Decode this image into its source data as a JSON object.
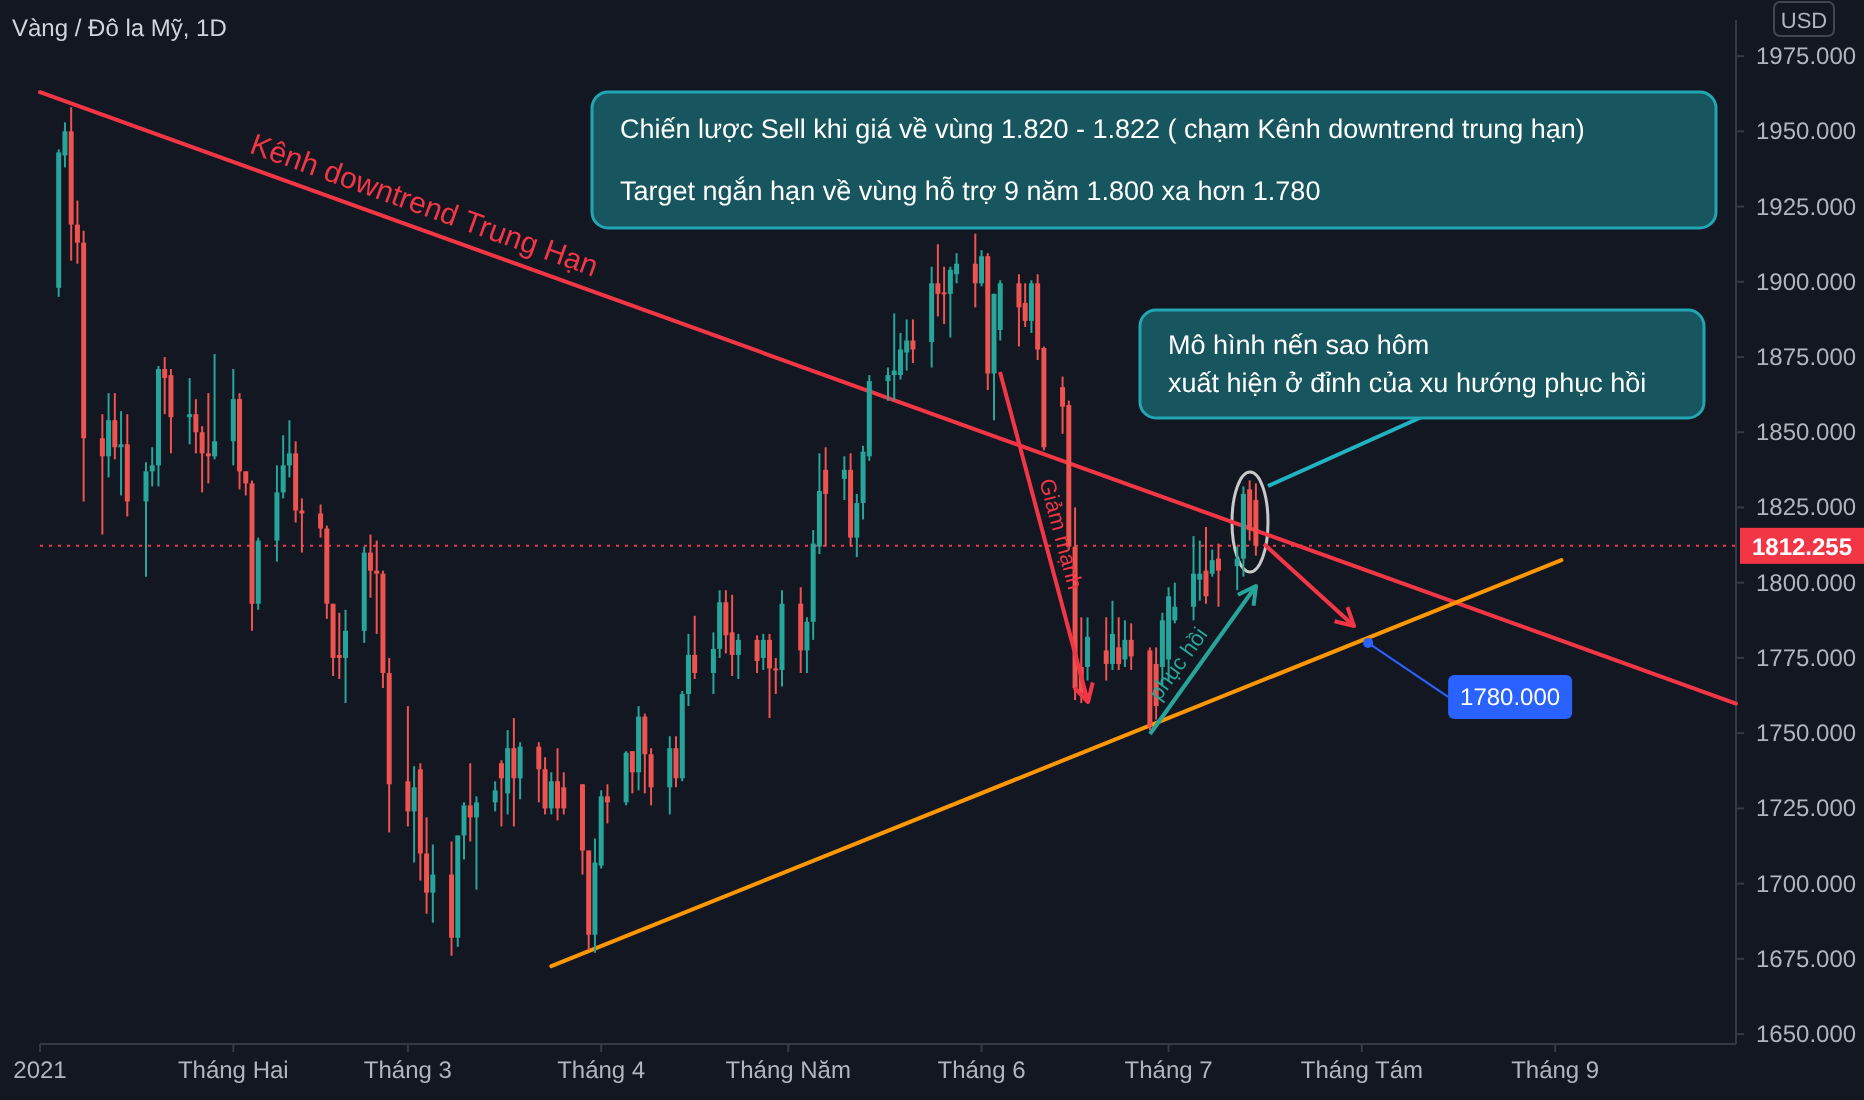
{
  "chart_data": {
    "type": "candlestick",
    "title": "Vàng / Đô la Mỹ, 1D",
    "ylabel": "USD",
    "x": [
      "2021-01-04",
      "2021-01-05",
      "2021-01-06",
      "2021-01-07",
      "2021-01-08",
      "2021-01-11",
      "2021-01-12",
      "2021-01-13",
      "2021-01-14",
      "2021-01-15",
      "2021-01-18",
      "2021-01-19",
      "2021-01-20",
      "2021-01-21",
      "2021-01-22",
      "2021-01-25",
      "2021-01-26",
      "2021-01-27",
      "2021-01-28",
      "2021-01-29",
      "2021-02-01",
      "2021-02-02",
      "2021-02-03",
      "2021-02-04",
      "2021-02-05",
      "2021-02-08",
      "2021-02-09",
      "2021-02-10",
      "2021-02-11",
      "2021-02-12",
      "2021-02-15",
      "2021-02-16",
      "2021-02-17",
      "2021-02-18",
      "2021-02-19",
      "2021-02-22",
      "2021-02-23",
      "2021-02-24",
      "2021-02-25",
      "2021-02-26",
      "2021-03-01",
      "2021-03-02",
      "2021-03-03",
      "2021-03-04",
      "2021-03-05",
      "2021-03-08",
      "2021-03-09",
      "2021-03-10",
      "2021-03-11",
      "2021-03-12",
      "2021-03-15",
      "2021-03-16",
      "2021-03-17",
      "2021-03-18",
      "2021-03-19",
      "2021-03-22",
      "2021-03-23",
      "2021-03-24",
      "2021-03-25",
      "2021-03-26",
      "2021-03-29",
      "2021-03-30",
      "2021-03-31",
      "2021-04-01",
      "2021-04-02",
      "2021-04-05",
      "2021-04-06",
      "2021-04-07",
      "2021-04-08",
      "2021-04-09",
      "2021-04-12",
      "2021-04-13",
      "2021-04-14",
      "2021-04-15",
      "2021-04-16",
      "2021-04-19",
      "2021-04-20",
      "2021-04-21",
      "2021-04-22",
      "2021-04-23",
      "2021-04-26",
      "2021-04-27",
      "2021-04-28",
      "2021-04-29",
      "2021-04-30",
      "2021-05-03",
      "2021-05-04",
      "2021-05-05",
      "2021-05-06",
      "2021-05-07",
      "2021-05-10",
      "2021-05-11",
      "2021-05-12",
      "2021-05-13",
      "2021-05-14",
      "2021-05-17",
      "2021-05-18",
      "2021-05-19",
      "2021-05-20",
      "2021-05-21",
      "2021-05-24",
      "2021-05-25",
      "2021-05-26",
      "2021-05-27",
      "2021-05-28",
      "2021-05-31",
      "2021-06-01",
      "2021-06-02",
      "2021-06-03",
      "2021-06-04",
      "2021-06-07",
      "2021-06-08",
      "2021-06-09",
      "2021-06-10",
      "2021-06-11",
      "2021-06-14",
      "2021-06-15",
      "2021-06-16",
      "2021-06-17",
      "2021-06-18",
      "2021-06-21",
      "2021-06-22",
      "2021-06-23",
      "2021-06-24",
      "2021-06-25",
      "2021-06-28",
      "2021-06-29",
      "2021-06-30",
      "2021-07-01",
      "2021-07-02",
      "2021-07-05",
      "2021-07-06",
      "2021-07-07",
      "2021-07-08",
      "2021-07-09",
      "2021-07-12",
      "2021-07-13",
      "2021-07-14",
      "2021-07-15"
    ],
    "ohlc": [
      [
        1898,
        1944,
        1895,
        1943
      ],
      [
        1942,
        1953,
        1938,
        1950
      ],
      [
        1950,
        1958,
        1907,
        1919
      ],
      [
        1919,
        1927,
        1906,
        1913
      ],
      [
        1913,
        1917,
        1827,
        1848
      ],
      [
        1848,
        1856,
        1816,
        1842
      ],
      [
        1842,
        1863,
        1835,
        1854
      ],
      [
        1854,
        1863,
        1841,
        1845
      ],
      [
        1845,
        1857,
        1829,
        1846
      ],
      [
        1846,
        1856,
        1822,
        1827
      ],
      [
        1827,
        1840,
        1802,
        1837
      ],
      [
        1837,
        1845,
        1832,
        1839
      ],
      [
        1839,
        1872,
        1832,
        1871
      ],
      [
        1871,
        1875,
        1856,
        1868
      ],
      [
        1869,
        1871,
        1843,
        1855
      ],
      [
        1855,
        1868,
        1846,
        1856
      ],
      [
        1856,
        1861,
        1843,
        1850
      ],
      [
        1850,
        1852,
        1830,
        1843
      ],
      [
        1843,
        1863,
        1833,
        1842
      ],
      [
        1842,
        1876,
        1841,
        1847
      ],
      [
        1847,
        1871,
        1839,
        1861
      ],
      [
        1861,
        1863,
        1831,
        1837
      ],
      [
        1837,
        1837,
        1829,
        1833
      ],
      [
        1833,
        1834,
        1784,
        1793
      ],
      [
        1793,
        1815,
        1791,
        1814
      ],
      [
        1814,
        1839,
        1807,
        1830
      ],
      [
        1830,
        1849,
        1828,
        1839
      ],
      [
        1839,
        1854,
        1835,
        1843
      ],
      [
        1843,
        1847,
        1820,
        1824
      ],
      [
        1824,
        1828,
        1810,
        1823
      ],
      [
        1823,
        1826,
        1815,
        1818
      ],
      [
        1818,
        1819,
        1788,
        1793
      ],
      [
        1793,
        1793,
        1769,
        1775
      ],
      [
        1776,
        1790,
        1768,
        1775
      ],
      [
        1775,
        1791,
        1760,
        1784
      ],
      [
        1784,
        1812,
        1780,
        1810
      ],
      [
        1810,
        1816,
        1795,
        1804
      ],
      [
        1804,
        1814,
        1783,
        1803
      ],
      [
        1803,
        1804,
        1765,
        1770
      ],
      [
        1770,
        1775,
        1717,
        1733
      ],
      [
        1734,
        1759,
        1719,
        1724
      ],
      [
        1724,
        1739,
        1707,
        1732
      ],
      [
        1738,
        1740,
        1701,
        1710
      ],
      [
        1710,
        1722,
        1690,
        1697
      ],
      [
        1697,
        1713,
        1687,
        1703
      ],
      [
        1703,
        1714,
        1676,
        1682
      ],
      [
        1682,
        1716,
        1679,
        1716
      ],
      [
        1716,
        1727,
        1708,
        1726
      ],
      [
        1726,
        1740,
        1714,
        1722
      ],
      [
        1722,
        1729,
        1698,
        1727
      ],
      [
        1727,
        1734,
        1724,
        1731
      ],
      [
        1740,
        1741,
        1719,
        1735
      ],
      [
        1730,
        1751,
        1723,
        1745
      ],
      [
        1745,
        1755,
        1719,
        1735
      ],
      [
        1735,
        1747,
        1728,
        1745.5
      ],
      [
        1745.5,
        1747,
        1727,
        1738
      ],
      [
        1738,
        1742,
        1723,
        1725
      ],
      [
        1725,
        1737,
        1723,
        1734
      ],
      [
        1734,
        1745,
        1721,
        1725
      ],
      [
        1732,
        1737,
        1723,
        1725
      ],
      [
        1733,
        1733,
        1703,
        1711
      ],
      [
        1711,
        1711,
        1678,
        1683
      ],
      [
        1683,
        1715,
        1677,
        1707
      ],
      [
        1706,
        1731,
        1705,
        1729
      ],
      [
        1729,
        1733,
        1720,
        1727
      ],
      [
        1727,
        1744,
        1726,
        1743.5
      ],
      [
        1744,
        1744,
        1730,
        1737
      ],
      [
        1737,
        1759,
        1731,
        1755.5
      ],
      [
        1755.5,
        1756.5,
        1730,
        1743
      ],
      [
        1743,
        1745,
        1726,
        1732
      ],
      [
        1732,
        1749,
        1723,
        1745
      ],
      [
        1745,
        1749,
        1732,
        1735
      ],
      [
        1735,
        1764,
        1734,
        1763
      ],
      [
        1763,
        1783,
        1759,
        1776
      ],
      [
        1776,
        1789,
        1768,
        1770
      ],
      [
        1770,
        1783.5,
        1763,
        1778
      ],
      [
        1778,
        1797.5,
        1775,
        1793.5
      ],
      [
        1793.5,
        1797.5,
        1776.5,
        1782.5
      ],
      [
        1783.5,
        1796,
        1769,
        1776
      ],
      [
        1776,
        1783,
        1768,
        1781
      ],
      [
        1781,
        1782.5,
        1770,
        1774
      ],
      [
        1775,
        1783,
        1771,
        1781
      ],
      [
        1781,
        1783,
        1755,
        1771.5
      ],
      [
        1771.5,
        1775,
        1763,
        1771
      ],
      [
        1771,
        1797.5,
        1765.5,
        1793
      ],
      [
        1793,
        1798.5,
        1770,
        1777.5
      ],
      [
        1777.5,
        1788.5,
        1770,
        1787
      ],
      [
        1787,
        1817.5,
        1781,
        1813
      ],
      [
        1812,
        1843,
        1809.5,
        1830.5
      ],
      [
        1837.5,
        1845,
        1812,
        1829.5
      ],
      [
        1834.5,
        1842,
        1827.5,
        1837.5
      ],
      [
        1837.5,
        1843,
        1812,
        1815
      ],
      [
        1815,
        1829.5,
        1808.5,
        1826.5
      ],
      [
        1826.5,
        1845.5,
        1821,
        1843.5
      ],
      [
        1842,
        1869,
        1840.5,
        1867
      ],
      [
        1867,
        1871.5,
        1860.5,
        1869
      ],
      [
        1869,
        1889.5,
        1860.5,
        1870.5
      ],
      [
        1869,
        1883,
        1867.5,
        1877.5
      ],
      [
        1876.5,
        1887.5,
        1870.5,
        1880.5
      ],
      [
        1880.5,
        1887.5,
        1873,
        1877.5
      ],
      [
        1880,
        1905,
        1871.5,
        1899.5
      ],
      [
        1899.5,
        1912.5,
        1888.5,
        1896
      ],
      [
        1896.5,
        1905,
        1886,
        1896
      ],
      [
        1896,
        1905,
        1881.5,
        1904
      ],
      [
        1902.5,
        1909.5,
        1899.5,
        1906
      ],
      [
        1906,
        1916,
        1891.5,
        1899.5
      ],
      [
        1899.5,
        1910.5,
        1898.5,
        1908.5
      ],
      [
        1908.5,
        1909.5,
        1864,
        1869.5
      ],
      [
        1869.5,
        1896,
        1854,
        1896
      ],
      [
        1884,
        1900.5,
        1880.5,
        1899.5
      ],
      [
        1899.5,
        1902.5,
        1878.5,
        1891.5
      ],
      [
        1893,
        1899.5,
        1885,
        1887
      ],
      [
        1887,
        1900.5,
        1883,
        1899.5
      ],
      [
        1899.5,
        1902.5,
        1874,
        1877.5
      ],
      [
        1878,
        1878.5,
        1844,
        1845
      ],
      [
        1865,
        1868.5,
        1849.5,
        1858.5
      ],
      [
        1859,
        1860.5,
        1811,
        1812
      ],
      [
        1812,
        1825,
        1761,
        1765
      ],
      [
        1772,
        1788.5,
        1760,
        1763
      ],
      [
        1772,
        1788.5,
        1767.5,
        1782
      ],
      [
        1777.5,
        1788.5,
        1767.5,
        1773
      ],
      [
        1773,
        1794,
        1771,
        1783
      ],
      [
        1778.5,
        1788.5,
        1771,
        1773
      ],
      [
        1774.5,
        1787.5,
        1772,
        1781
      ],
      [
        1781,
        1786.5,
        1771,
        1775.5
      ],
      [
        1777.5,
        1778.5,
        1751,
        1752
      ],
      [
        1773,
        1778.5,
        1754.5,
        1759
      ],
      [
        1772,
        1790,
        1765.5,
        1787.5
      ],
      [
        1774.5,
        1798.5,
        1767.5,
        1795.5
      ],
      [
        1787.5,
        1800,
        1786.5,
        1792
      ],
      [
        1792,
        1815.5,
        1787.5,
        1803
      ],
      [
        1801,
        1814,
        1794,
        1803
      ],
      [
        1804,
        1818.5,
        1793,
        1795.5
      ],
      [
        1803,
        1811,
        1802,
        1807.5
      ],
      [
        1808,
        1813,
        1792,
        1804
      ],
      [
        1805.5,
        1812,
        1797.5,
        1808
      ],
      [
        1808,
        1832,
        1802,
        1829.5
      ],
      [
        1831,
        1834,
        1814,
        1817.5
      ],
      [
        1827.5,
        1833,
        1809,
        1812.255
      ]
    ],
    "series": [
      {
        "type": "line",
        "name": "Kênh downtrend Trung Hạn",
        "color": "#f23645",
        "x": [
          "2021-01-01",
          "2021-09-30"
        ],
        "values": [
          1963,
          1759.8
        ]
      },
      {
        "type": "line",
        "color": "#ff9800",
        "x": [
          "2021-03-24",
          "2021-09-02"
        ],
        "values": [
          1672.6,
          1807.5
        ]
      }
    ],
    "ref_lines": [
      {
        "axis": "y",
        "value": 1812.255,
        "label": "1812.255",
        "color": "#f23645",
        "line_style": "dotted"
      }
    ],
    "annotations": [
      "Chiến lược Sell khi giá về vùng 1.820 - 1.822 ( chạm Kênh downtrend trung hạn)",
      "Target ngắn hạn về vùng hỗ trợ 9 năm 1.800 xa hơn 1.780",
      "Mô hình nến sao hôm",
      "xuất hiện ở đỉnh của xu hướng phục hồi",
      "Giảm mạnh",
      "phục hồi",
      {
        "text": "1780.000",
        "x": "2021-08-02",
        "y": 1780
      }
    ],
    "xlim": [
      "2021-01-01",
      "2021-09-30"
    ],
    "xticks": [
      {
        "value": "2021-01-01",
        "label": "2021"
      },
      {
        "value": "2021-02-01",
        "label": "Tháng Hai"
      },
      {
        "value": "2021-03-01",
        "label": "Tháng 3"
      },
      {
        "value": "2021-04-01",
        "label": "Tháng 4"
      },
      {
        "value": "2021-05-01",
        "label": "Tháng Năm"
      },
      {
        "value": "2021-06-01",
        "label": "Tháng 6"
      },
      {
        "value": "2021-07-01",
        "label": "Tháng 7"
      },
      {
        "value": "2021-08-01",
        "label": "Tháng Tám"
      },
      {
        "value": "2021-09-01",
        "label": "Tháng 9"
      }
    ],
    "ylim": [
      1646.7,
      1987
    ],
    "yticks": [
      {
        "value": 1650,
        "label": "1650.000"
      },
      {
        "value": 1675,
        "label": "1675.000"
      },
      {
        "value": 1700,
        "label": "1700.000"
      },
      {
        "value": 1725,
        "label": "1725.000"
      },
      {
        "value": 1750,
        "label": "1750.000"
      },
      {
        "value": 1775,
        "label": "1775.000"
      },
      {
        "value": 1800,
        "label": "1800.000"
      },
      {
        "value": 1825,
        "label": "1825.000"
      },
      {
        "value": 1850,
        "label": "1850.000"
      },
      {
        "value": 1875,
        "label": "1875.000"
      },
      {
        "value": 1900,
        "label": "1900.000"
      },
      {
        "value": 1925,
        "label": "1925.000"
      },
      {
        "value": 1950,
        "label": "1950.000"
      },
      {
        "value": 1975,
        "label": "1975.000"
      }
    ]
  }
}
